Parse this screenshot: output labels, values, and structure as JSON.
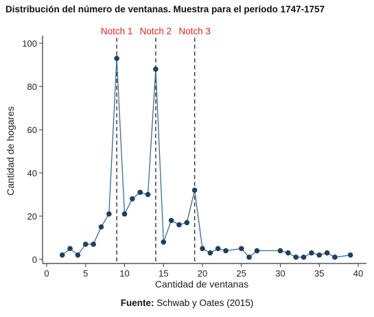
{
  "title": "Distribución del número de ventanas. Muestra para el período 1747-1757",
  "source": {
    "label": "Fuente:",
    "text": "Schwab y Oates (2015)"
  },
  "colors": {
    "line": "#3b6a93",
    "marker": "#1f3f5f",
    "notch": "#333333",
    "notch_label": "#e8221c",
    "axis": "#333333"
  },
  "chart_data": {
    "type": "line",
    "xlabel": "Cantidad de ventanas",
    "ylabel": "Cantidad de hogares",
    "xlim": [
      0,
      40
    ],
    "ylim": [
      0,
      100
    ],
    "xticks": [
      0,
      5,
      10,
      15,
      20,
      25,
      30,
      35,
      40
    ],
    "yticks": [
      0,
      20,
      40,
      60,
      80,
      100
    ],
    "grid": false,
    "series": [
      {
        "x": [
          2,
          3,
          4,
          5,
          6,
          7,
          8,
          9,
          10,
          11,
          12,
          13,
          14,
          15,
          16,
          17,
          18,
          19,
          20,
          21,
          22,
          23,
          25,
          26,
          27,
          30,
          31,
          32,
          33,
          34,
          35,
          36,
          37,
          39
        ],
        "y": [
          2,
          5,
          2,
          7,
          7,
          15,
          21,
          93,
          21,
          28,
          31,
          30,
          88,
          8,
          18,
          16,
          17,
          32,
          5,
          3,
          5,
          4,
          5,
          1,
          4,
          4,
          3,
          1,
          1,
          3,
          2,
          3,
          1,
          2
        ]
      }
    ],
    "annotations": [
      {
        "label": "Notch 1",
        "x": 9
      },
      {
        "label": "Notch 2",
        "x": 14
      },
      {
        "label": "Notch 3",
        "x": 19
      }
    ]
  }
}
